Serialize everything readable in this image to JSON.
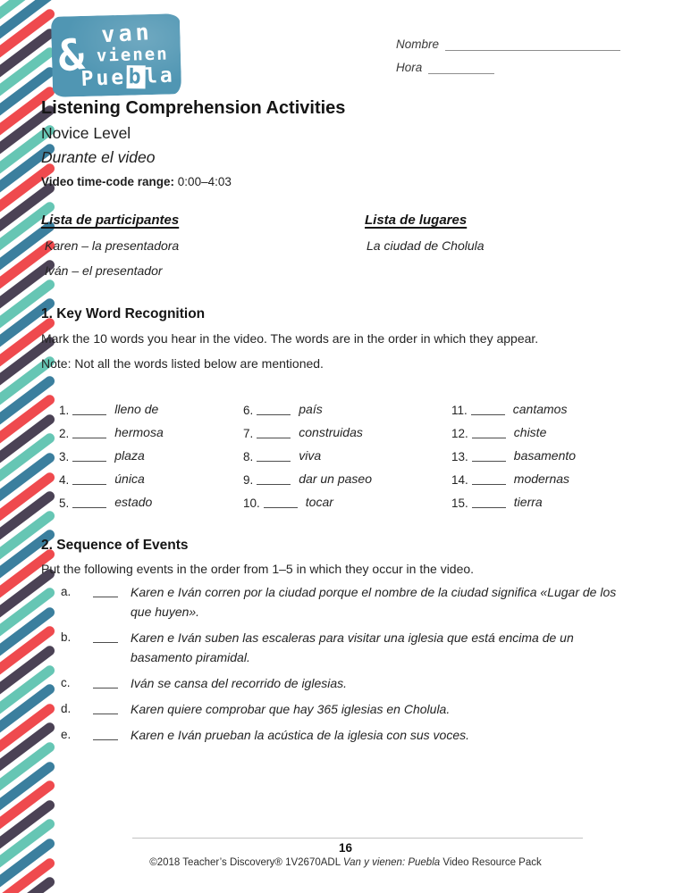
{
  "header": {
    "nombre_label": "Nombre",
    "hora_label": "Hora",
    "logo": {
      "amp": "&",
      "line1": "van",
      "line2": "vienen",
      "line3_pre": "Pue",
      "line3_b": "b",
      "line3_post": "la"
    }
  },
  "title_block": {
    "title": "Listening Comprehension Activities",
    "level": "Novice Level",
    "subtitle": "Durante el video",
    "timecode_label": "Video time-code range:",
    "timecode_value": " 0:00–4:03"
  },
  "lists": {
    "participants": {
      "heading": "Lista de participantes",
      "item1": "Karen – la presentadora",
      "item2": "Iván – el presentador"
    },
    "places": {
      "heading": "Lista de lugares",
      "item1": "La ciudad de Cholula"
    }
  },
  "section1": {
    "heading": "1. Key Word Recognition",
    "instructions": "Mark the 10 words you hear in the video. The words are in the order in which they appear.",
    "note": "Note: Not all the words listed below are mentioned.",
    "words": [
      {
        "num": "1.",
        "word": "lleno de"
      },
      {
        "num": "2.",
        "word": "hermosa"
      },
      {
        "num": "3.",
        "word": "plaza"
      },
      {
        "num": "4.",
        "word": "única"
      },
      {
        "num": "5.",
        "word": "estado"
      },
      {
        "num": "6.",
        "word": "país"
      },
      {
        "num": "7.",
        "word": "construidas"
      },
      {
        "num": "8.",
        "word": "viva"
      },
      {
        "num": "9.",
        "word": "dar un paseo"
      },
      {
        "num": "10.",
        "word": "tocar"
      },
      {
        "num": "11.",
        "word": "cantamos"
      },
      {
        "num": "12.",
        "word": "chiste"
      },
      {
        "num": "13.",
        "word": "basamento"
      },
      {
        "num": "14.",
        "word": "modernas"
      },
      {
        "num": "15.",
        "word": "tierra"
      }
    ]
  },
  "section2": {
    "heading": "2. Sequence of Events",
    "instructions": "Put the following events in the order from 1–5 in which they occur in the video.",
    "items": [
      {
        "letter": "a.",
        "text": "Karen e Iván corren por la ciudad porque el nombre de la ciudad significa «Lugar de los que huyen»."
      },
      {
        "letter": "b.",
        "text": "Karen e Iván suben las escaleras para visitar una iglesia que está encima de un basamento piramidal."
      },
      {
        "letter": "c.",
        "text": "Iván se cansa del recorrido de iglesias."
      },
      {
        "letter": "d.",
        "text": "Karen quiere comprobar que hay 365 iglesias en Cholula."
      },
      {
        "letter": "e.",
        "text": "Karen e Iván prueban la acústica de la iglesia con sus voces."
      }
    ]
  },
  "footer": {
    "page_number": "16",
    "copyright_pre": "©2018 Teacher’s Discovery® 1V2670ADL ",
    "copyright_italic": "Van y vienen: Puebla",
    "copyright_post": " Video Resource Pack"
  },
  "colors": {
    "stripe_cycle": [
      "#66c6b4",
      "#3b7f9e",
      "#ef4a4e",
      "#4b4255"
    ],
    "logo_teal": "#5096b3",
    "line_gray": "#8e8e8e",
    "text_dark": "#232323"
  }
}
